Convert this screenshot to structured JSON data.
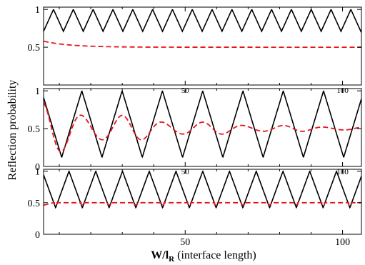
{
  "chart_data": {
    "type": "line",
    "xlabel_main": "W/l",
    "xlabel_sub": "R",
    "xlabel_rest": " (interface length)",
    "ylabel": "Reflection probability",
    "xlim": [
      5,
      106
    ],
    "x_tick_label": "50",
    "x_tick_labels": [
      "50",
      "100"
    ],
    "colors": {
      "solid": "#000000",
      "dashed": "#e8141e"
    },
    "panels": [
      {
        "name": "top",
        "ylim": [
          0,
          1.03
        ],
        "yticks": [
          "0.5",
          "1"
        ],
        "bottom_tick_labels_small": true,
        "series": [
          {
            "style": "solid",
            "kind": "triangle",
            "x_start": 5,
            "period": 6.3,
            "min": 0.71,
            "max": 1.0,
            "phase": 0.0
          },
          {
            "style": "dashed",
            "kind": "decay",
            "x_start": 5,
            "base": 0.5,
            "start": 0.58,
            "rate": 0.12
          }
        ]
      },
      {
        "name": "middle",
        "ylim": [
          0,
          1.03
        ],
        "yticks": [
          "0",
          "0.5",
          "1"
        ],
        "bottom_tick_labels_small": true,
        "series": [
          {
            "style": "solid",
            "kind": "triangle",
            "x_start": 5,
            "period": 12.8,
            "min": 0.12,
            "max": 1.0,
            "phase": 0.55
          },
          {
            "style": "dashed",
            "kind": "damped",
            "x_start": 5,
            "base": 0.5,
            "amp": 0.3,
            "rate": 0.028,
            "period": 12.8,
            "phase": 0.55
          }
        ]
      },
      {
        "name": "bottom",
        "ylim": [
          0,
          1.03
        ],
        "yticks": [
          "0",
          "0.5",
          "1"
        ],
        "bottom_tick_labels_small": false,
        "series": [
          {
            "style": "solid",
            "kind": "triangle",
            "x_start": 5,
            "period": 8.5,
            "min": 0.42,
            "max": 1.0,
            "phase": 0.55
          },
          {
            "style": "dashed",
            "kind": "flat_dips",
            "x_start": 5,
            "base": 0.5,
            "start": 0.46,
            "period": 8.5,
            "phase": 0.55
          }
        ]
      }
    ]
  }
}
